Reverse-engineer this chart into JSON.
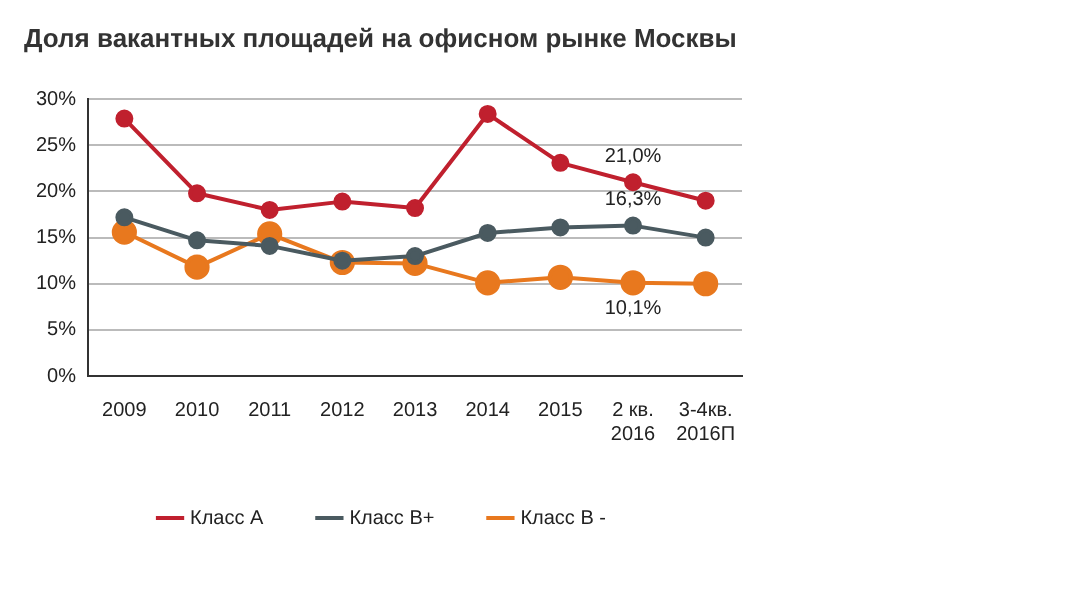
{
  "chart_data": {
    "type": "line",
    "title": "Доля вакантных площадей на офисном рынке Москвы",
    "categories": [
      "2009",
      "2010",
      "2011",
      "2012",
      "2013",
      "2014",
      "2015",
      "2 кв.\n2016",
      "3-4кв.\n2016П"
    ],
    "series": [
      {
        "name": "Класс А",
        "color": "#c0202e",
        "values": [
          27.9,
          19.8,
          18.0,
          18.9,
          18.2,
          28.4,
          23.1,
          21.0,
          19.0
        ],
        "value_labels": [
          null,
          null,
          null,
          null,
          null,
          null,
          null,
          "21,0%",
          null
        ]
      },
      {
        "name": "Класс В+",
        "color": "#4a5a60",
        "values": [
          17.2,
          14.7,
          14.1,
          12.5,
          13.0,
          15.5,
          16.1,
          16.3,
          15.0
        ],
        "value_labels": [
          null,
          null,
          null,
          null,
          null,
          null,
          null,
          "16,3%",
          null
        ]
      },
      {
        "name": "Класс В -",
        "color": "#e8781e",
        "values": [
          15.6,
          11.8,
          15.4,
          12.3,
          12.2,
          10.1,
          10.7,
          10.1,
          10.0
        ],
        "value_labels": [
          null,
          null,
          null,
          null,
          null,
          null,
          null,
          "10,1%",
          null
        ]
      }
    ],
    "ylim": [
      0,
      30
    ],
    "yticks": [
      {
        "value": 0,
        "label": "0%"
      },
      {
        "value": 5,
        "label": "5%"
      },
      {
        "value": 10,
        "label": "10%"
      },
      {
        "value": 15,
        "label": "15%"
      },
      {
        "value": 20,
        "label": "20%"
      },
      {
        "value": 25,
        "label": "25%"
      },
      {
        "value": 30,
        "label": "30%"
      }
    ],
    "grid": "y",
    "legend": "bottom",
    "marker": "circle",
    "line_style": "solid"
  }
}
